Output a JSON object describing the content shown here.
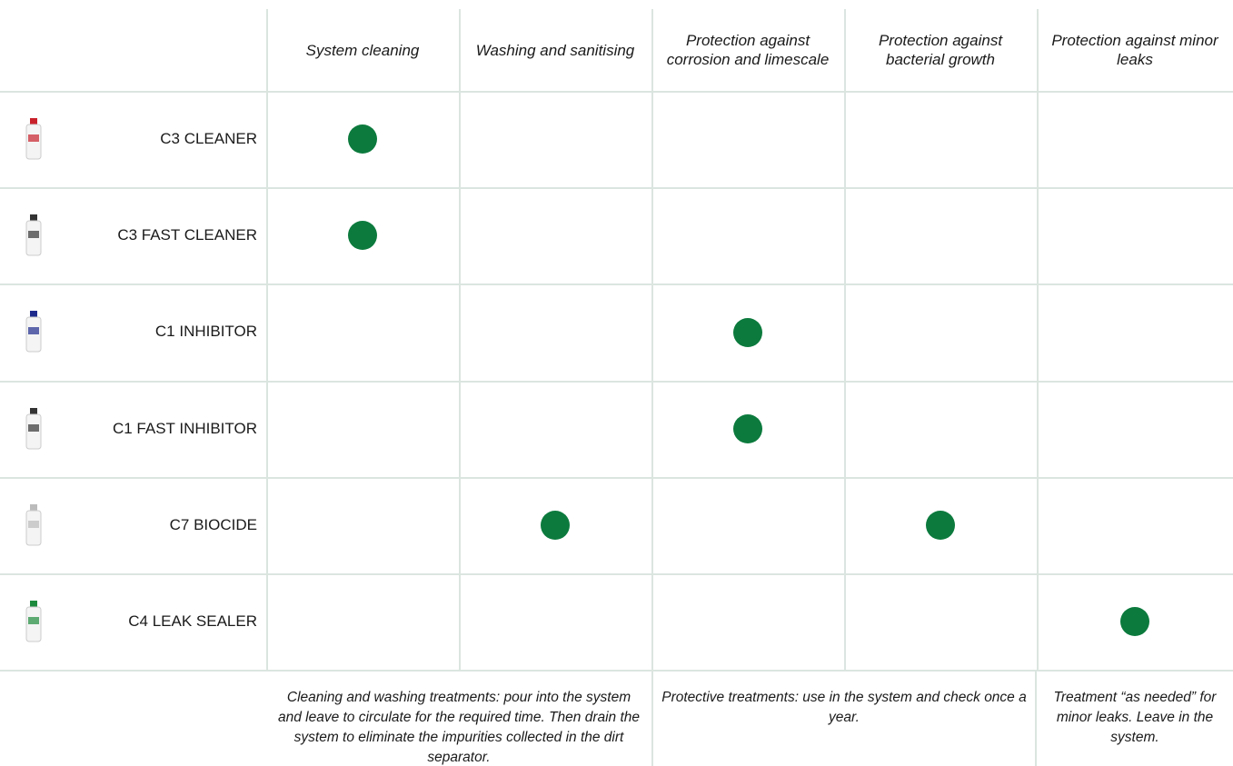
{
  "header": {
    "columns": [
      "System cleaning",
      "Washing and sanitising",
      "Protection against corrosion and limescale",
      "Protection against bacterial growth",
      "Protection against minor leaks"
    ]
  },
  "rows": [
    {
      "name": "C3 CLEANER",
      "marks": [
        true,
        false,
        false,
        false,
        false
      ]
    },
    {
      "name": "C3 FAST CLEANER",
      "marks": [
        true,
        false,
        false,
        false,
        false
      ]
    },
    {
      "name": "C1 INHIBITOR",
      "marks": [
        false,
        false,
        true,
        false,
        false
      ]
    },
    {
      "name": "C1 FAST INHIBITOR",
      "marks": [
        false,
        false,
        true,
        false,
        false
      ]
    },
    {
      "name": "C7 BIOCIDE",
      "marks": [
        false,
        true,
        false,
        true,
        false
      ]
    },
    {
      "name": "C4 LEAK SEALER",
      "marks": [
        false,
        false,
        false,
        false,
        true
      ]
    }
  ],
  "dot_color": "#0c7a3d",
  "notes": [
    "Cleaning and washing treatments: pour into the system and leave to circulate for the required time. Then drain the system to eliminate the impurities collected in the dirt separator.",
    "Protective treatments: use in the system and check once a year.",
    "Treatment “as needed” for minor leaks. Leave in the system."
  ]
}
